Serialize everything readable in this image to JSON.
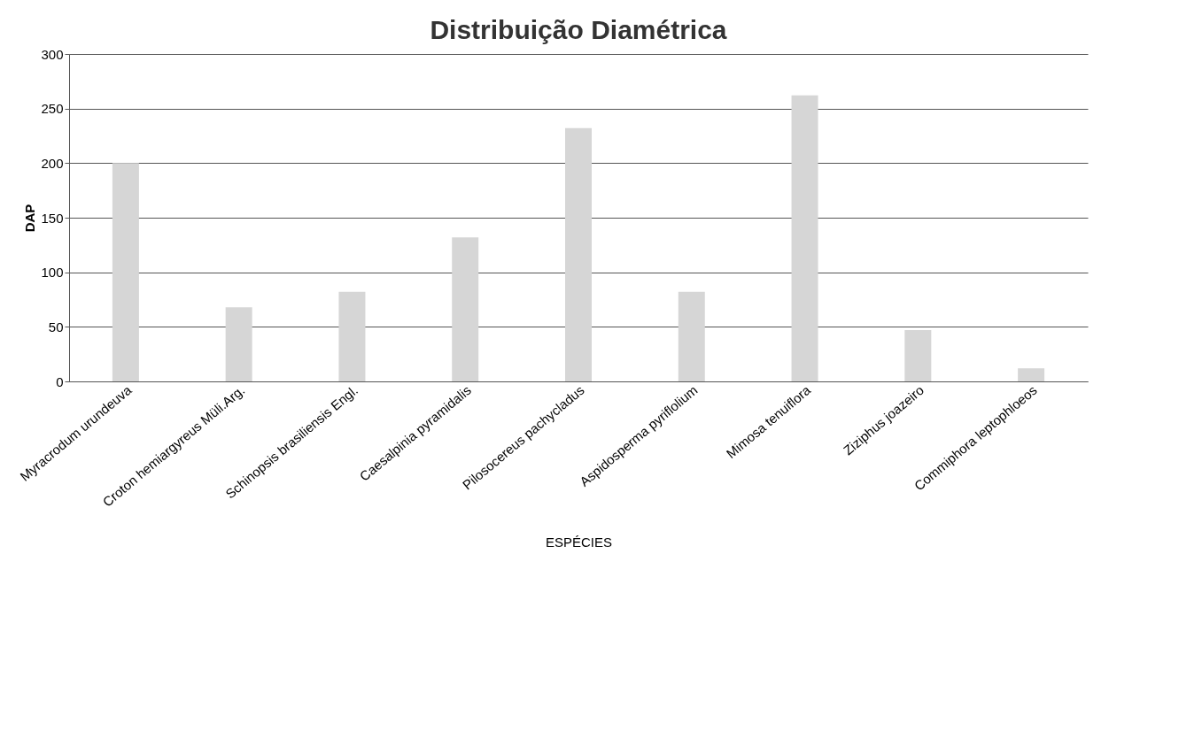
{
  "chart_data": {
    "type": "bar",
    "title": "Distribuição Diamétrica",
    "xlabel": "ESPÉCIES",
    "ylabel": "DAP",
    "categories": [
      "Myracrodum urundeuva",
      "Croton hemiargyreus Müli.Arg.",
      "Schinopsis brasiliensis Engl.",
      "Caesalpinia pyramidalis",
      "Pilosocereus pachycladus",
      "Aspidosperma pyriflolium",
      "Mimosa tenuiflora",
      "Ziziphus joazeiro",
      "Commiphora leptophloeos"
    ],
    "values": [
      200,
      68,
      82,
      132,
      232,
      82,
      262,
      47,
      12
    ],
    "color": "#d6d6d6",
    "ylim": [
      0,
      300
    ],
    "yticks": [
      0,
      50,
      100,
      150,
      200,
      250,
      300
    ],
    "grid": "y"
  }
}
